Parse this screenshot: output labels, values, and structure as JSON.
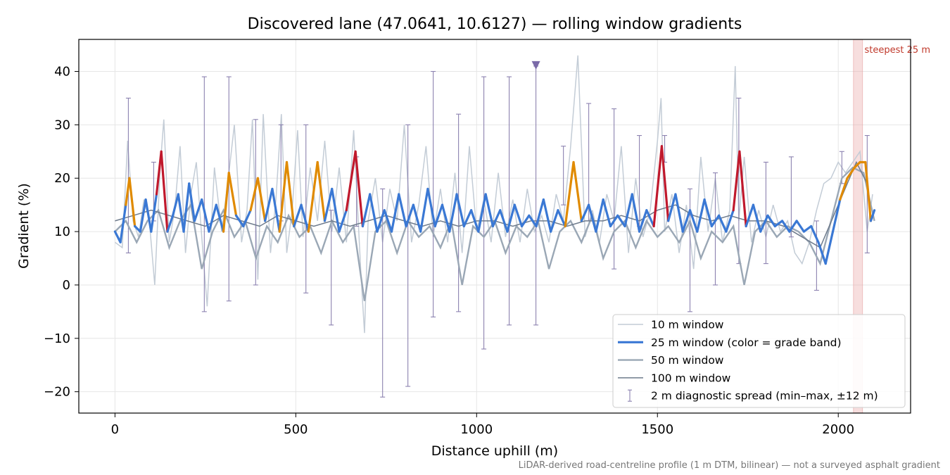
{
  "chart_data": {
    "type": "line",
    "title": "Discovered lane (47.0641, 10.6127) — rolling window gradients",
    "xlabel": "Distance uphill (m)",
    "ylabel": "Gradient (%)",
    "xlim": [
      -100,
      2200
    ],
    "ylim": [
      -24,
      46
    ],
    "xticks": [
      0,
      500,
      1000,
      1500,
      2000
    ],
    "xtick_labels": [
      "0",
      "500",
      "1000",
      "1500",
      "2000"
    ],
    "yticks": [
      -20,
      -10,
      0,
      10,
      20,
      30,
      40
    ],
    "ytick_labels": [
      "−20",
      "−10",
      "0",
      "10",
      "20",
      "30",
      "40"
    ],
    "grid": true,
    "legend_position": "lower-right",
    "footnote": "LiDAR-derived road-centreline profile (1 m DTM, bilinear) — not a surveyed asphalt gradient",
    "highlight_band": {
      "x_range": [
        2042,
        2067
      ],
      "label": "steepest 25 m",
      "color": "#e8a0a0"
    },
    "marker": {
      "x": 1164,
      "y": 41,
      "shape": "triangle-down",
      "color": "#7a6aa8"
    },
    "grade_band_colors": {
      "normal": "#3a78d4",
      "steep": "#e08a00",
      "very_steep": "#c0192d"
    },
    "series": [
      {
        "name": "10 m window",
        "color": "#c3ccd6",
        "x": [
          0,
          20,
          35,
          50,
          65,
          80,
          95,
          110,
          125,
          135,
          150,
          165,
          180,
          195,
          210,
          225,
          240,
          255,
          275,
          295,
          315,
          330,
          350,
          365,
          380,
          395,
          410,
          430,
          445,
          460,
          475,
          490,
          505,
          520,
          540,
          560,
          580,
          600,
          620,
          640,
          660,
          680,
          690,
          700,
          720,
          740,
          760,
          780,
          800,
          820,
          840,
          860,
          880,
          900,
          920,
          940,
          960,
          980,
          1000,
          1020,
          1040,
          1060,
          1080,
          1100,
          1120,
          1140,
          1160,
          1180,
          1200,
          1220,
          1240,
          1260,
          1280,
          1300,
          1320,
          1340,
          1360,
          1380,
          1400,
          1420,
          1440,
          1460,
          1480,
          1500,
          1510,
          1520,
          1540,
          1560,
          1580,
          1600,
          1620,
          1640,
          1660,
          1680,
          1700,
          1715,
          1725,
          1740,
          1760,
          1780,
          1800,
          1820,
          1840,
          1860,
          1880,
          1900,
          1920,
          1940,
          1960,
          1980,
          2000,
          2020,
          2040,
          2060,
          2080,
          2095
        ],
        "values": [
          8,
          7,
          27,
          12,
          9,
          16,
          12,
          0,
          22,
          31,
          8,
          14,
          26,
          6,
          17,
          23,
          9,
          -4,
          22,
          10,
          21,
          30,
          8,
          14,
          31,
          1,
          32,
          6,
          16,
          32,
          6,
          14,
          29,
          9,
          22,
          12,
          27,
          10,
          22,
          8,
          29,
          2,
          -9,
          12,
          20,
          8,
          18,
          12,
          30,
          8,
          15,
          26,
          9,
          18,
          8,
          21,
          6,
          26,
          10,
          16,
          8,
          21,
          9,
          16,
          8,
          18,
          10,
          13,
          8,
          17,
          12,
          26,
          43,
          9,
          14,
          8,
          17,
          12,
          26,
          6,
          20,
          9,
          14,
          27,
          35,
          10,
          17,
          6,
          15,
          3,
          24,
          10,
          20,
          8,
          14,
          41,
          12,
          24,
          8,
          14,
          9,
          15,
          10,
          12,
          6,
          4,
          8,
          14,
          19,
          20,
          23,
          21,
          23,
          25,
          10,
          17
        ]
      },
      {
        "name": "25 m window (color = grade band)",
        "color": "#3a78d4",
        "x": [
          0,
          15,
          30,
          40,
          55,
          70,
          85,
          100,
          115,
          128,
          145,
          160,
          175,
          190,
          205,
          220,
          240,
          260,
          280,
          300,
          315,
          335,
          355,
          375,
          395,
          415,
          435,
          455,
          475,
          495,
          515,
          535,
          560,
          580,
          600,
          620,
          640,
          665,
          685,
          705,
          725,
          745,
          765,
          785,
          805,
          825,
          845,
          865,
          885,
          905,
          925,
          945,
          965,
          985,
          1005,
          1025,
          1045,
          1065,
          1085,
          1105,
          1125,
          1145,
          1165,
          1185,
          1205,
          1225,
          1245,
          1268,
          1290,
          1310,
          1330,
          1350,
          1370,
          1390,
          1410,
          1430,
          1450,
          1470,
          1490,
          1512,
          1530,
          1550,
          1570,
          1590,
          1610,
          1630,
          1650,
          1670,
          1690,
          1710,
          1727,
          1745,
          1765,
          1785,
          1805,
          1825,
          1845,
          1865,
          1885,
          1905,
          1925,
          1945,
          1965,
          1985,
          2005,
          2025,
          2045,
          2060,
          2075,
          2090,
          2100
        ],
        "values": [
          10,
          8,
          15,
          20,
          11,
          10,
          16,
          10,
          17,
          25,
          10,
          13,
          17,
          10,
          19,
          12,
          16,
          10,
          15,
          10,
          21,
          13,
          11,
          14,
          20,
          12,
          18,
          10,
          23,
          11,
          15,
          10,
          23,
          12,
          18,
          10,
          14,
          25,
          11,
          17,
          10,
          14,
          10,
          17,
          11,
          15,
          10,
          18,
          11,
          15,
          10,
          17,
          11,
          14,
          10,
          17,
          11,
          14,
          10,
          15,
          11,
          13,
          11,
          16,
          10,
          14,
          11,
          23,
          12,
          15,
          10,
          16,
          11,
          13,
          11,
          17,
          10,
          14,
          11,
          26,
          12,
          17,
          10,
          14,
          10,
          16,
          11,
          13,
          10,
          14,
          25,
          11,
          15,
          10,
          13,
          11,
          12,
          10,
          12,
          10,
          11,
          8,
          4,
          10,
          16,
          20,
          22,
          23,
          23,
          12,
          14
        ]
      },
      {
        "name": "50 m window",
        "color": "#9aa7b5",
        "x": [
          0,
          30,
          60,
          90,
          120,
          150,
          180,
          210,
          240,
          270,
          300,
          330,
          360,
          390,
          420,
          450,
          480,
          510,
          540,
          570,
          600,
          630,
          660,
          690,
          720,
          750,
          780,
          810,
          840,
          870,
          900,
          930,
          960,
          990,
          1020,
          1050,
          1080,
          1110,
          1140,
          1170,
          1200,
          1230,
          1260,
          1290,
          1320,
          1350,
          1380,
          1410,
          1440,
          1470,
          1500,
          1530,
          1560,
          1590,
          1620,
          1650,
          1680,
          1710,
          1740,
          1770,
          1800,
          1830,
          1860,
          1890,
          1920,
          1950,
          1980,
          2010,
          2040,
          2070,
          2100
        ],
        "values": [
          10,
          12,
          8,
          12,
          14,
          7,
          12,
          15,
          3,
          10,
          14,
          9,
          12,
          5,
          11,
          8,
          13,
          9,
          11,
          6,
          12,
          8,
          11,
          -3,
          10,
          12,
          6,
          12,
          9,
          11,
          7,
          12,
          0,
          11,
          9,
          12,
          6,
          11,
          9,
          12,
          3,
          10,
          12,
          8,
          13,
          5,
          10,
          12,
          7,
          12,
          9,
          11,
          8,
          12,
          5,
          10,
          8,
          11,
          0,
          10,
          12,
          9,
          11,
          10,
          8,
          4,
          12,
          20,
          22,
          21,
          12
        ]
      },
      {
        "name": "100 m window",
        "color": "#6e7b8c",
        "x": [
          0,
          50,
          100,
          150,
          200,
          250,
          300,
          350,
          400,
          450,
          500,
          550,
          600,
          650,
          700,
          750,
          800,
          850,
          900,
          950,
          1000,
          1050,
          1100,
          1150,
          1200,
          1250,
          1300,
          1350,
          1400,
          1450,
          1500,
          1550,
          1600,
          1650,
          1700,
          1750,
          1800,
          1850,
          1900,
          1950,
          2000,
          2050,
          2080
        ],
        "values": [
          12,
          13,
          14,
          13,
          12,
          11,
          13,
          12,
          11,
          13,
          12,
          11,
          12,
          11,
          12,
          13,
          12,
          11,
          12,
          11,
          12,
          12,
          11,
          12,
          12,
          11,
          12,
          12,
          13,
          12,
          14,
          15,
          13,
          12,
          13,
          12,
          12,
          11,
          9,
          7,
          15,
          23,
          19
        ]
      },
      {
        "name": "2 m diagnostic spread (min–max, ±12 m)",
        "color": "#8c82b0",
        "x": [
          37,
          107,
          247,
          315,
          389,
          459,
          528,
          598,
          668,
          740,
          810,
          880,
          950,
          1020,
          1090,
          1164,
          1240,
          1310,
          1380,
          1450,
          1520,
          1590,
          1660,
          1725,
          1800,
          1870,
          1940,
          2010,
          2080
        ],
        "low": [
          6,
          12,
          -5,
          -3,
          0,
          12,
          -1.5,
          -7.5,
          11,
          -21,
          -19,
          -6,
          -5,
          -12,
          -7.5,
          -7.5,
          15,
          12,
          3,
          11,
          23,
          -5,
          0,
          4,
          4,
          9,
          -1,
          19,
          6
        ],
        "high": [
          35,
          23,
          39,
          39,
          31,
          30,
          30,
          14,
          24,
          18,
          30,
          40,
          32,
          39,
          39,
          41,
          26,
          34,
          33,
          28,
          28,
          18,
          21,
          35,
          23,
          24,
          12,
          25,
          28
        ]
      }
    ]
  }
}
